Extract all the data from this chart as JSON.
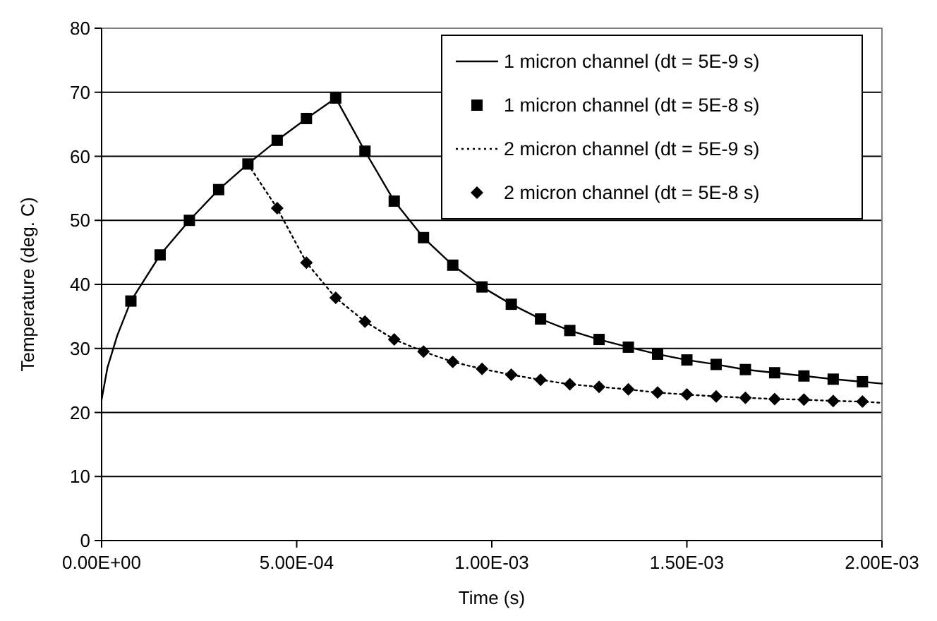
{
  "chart_data": {
    "type": "line",
    "xlabel": "Time (s)",
    "ylabel": "Temperature (deg. C)",
    "xlim": [
      0,
      0.002
    ],
    "ylim": [
      0,
      80
    ],
    "xticks": [
      {
        "value": 0,
        "label": "0.00E+00"
      },
      {
        "value": 0.0005,
        "label": "5.00E-04"
      },
      {
        "value": 0.001,
        "label": "1.00E-03"
      },
      {
        "value": 0.0015,
        "label": "1.50E-03"
      },
      {
        "value": 0.002,
        "label": "2.00E-03"
      }
    ],
    "yticks": [
      0,
      10,
      20,
      30,
      40,
      50,
      60,
      70,
      80
    ],
    "grid": "y",
    "legend": "top right",
    "series": [
      {
        "name": "1 micron channel (dt = 5E-9 s)",
        "type": "line",
        "color": "#000000",
        "marker": "none",
        "line_style": "solid",
        "x": [
          0,
          1.5e-05,
          4e-05,
          7.5e-05,
          0.00015,
          0.000225,
          0.0003,
          0.000375,
          0.00045,
          0.000525,
          0.0006,
          0.000675,
          0.00075,
          0.000825,
          0.0009,
          0.000975,
          0.00105,
          0.001125,
          0.0012,
          0.001275,
          0.00135,
          0.001425,
          0.0015,
          0.001575,
          0.00165,
          0.001725,
          0.0018,
          0.001875,
          0.00195,
          0.002
        ],
        "values": [
          22,
          27,
          32,
          37.4,
          44.6,
          50,
          54.8,
          58.8,
          62.5,
          65.9,
          69.1,
          60.8,
          53,
          47.3,
          43,
          39.6,
          36.9,
          34.6,
          32.8,
          31.4,
          30.2,
          29.1,
          28.2,
          27.5,
          26.7,
          26.2,
          25.7,
          25.2,
          24.8,
          24.5
        ]
      },
      {
        "name": "1 micron channel (dt = 5E-8 s)",
        "type": "scatter",
        "color": "#000000",
        "marker": "square",
        "x": [
          7.5e-05,
          0.00015,
          0.000225,
          0.0003,
          0.000375,
          0.00045,
          0.000525,
          0.0006,
          0.000675,
          0.00075,
          0.000825,
          0.0009,
          0.000975,
          0.00105,
          0.001125,
          0.0012,
          0.001275,
          0.00135,
          0.001425,
          0.0015,
          0.001575,
          0.00165,
          0.001725,
          0.0018,
          0.001875,
          0.00195
        ],
        "values": [
          37.4,
          44.6,
          50,
          54.8,
          58.8,
          62.5,
          65.9,
          69.1,
          60.8,
          53,
          47.3,
          43,
          39.6,
          36.9,
          34.6,
          32.8,
          31.4,
          30.2,
          29.1,
          28.2,
          27.5,
          26.7,
          26.2,
          25.7,
          25.2,
          24.8
        ]
      },
      {
        "name": "2 micron channel (dt = 5E-9 s)",
        "type": "line",
        "color": "#000000",
        "marker": "none",
        "line_style": "dotted",
        "x": [
          0.000375,
          0.00045,
          0.000525,
          0.0006,
          0.000675,
          0.00075,
          0.000825,
          0.0009,
          0.000975,
          0.00105,
          0.001125,
          0.0012,
          0.001275,
          0.00135,
          0.001425,
          0.0015,
          0.001575,
          0.00165,
          0.001725,
          0.0018,
          0.001875,
          0.00195,
          0.002
        ],
        "values": [
          58.8,
          51.9,
          43.4,
          37.9,
          34.2,
          31.4,
          29.5,
          27.9,
          26.8,
          25.9,
          25.1,
          24.4,
          24,
          23.6,
          23.1,
          22.8,
          22.5,
          22.3,
          22.1,
          22,
          21.8,
          21.7,
          21.5
        ]
      },
      {
        "name": "2 micron channel (dt = 5E-8 s)",
        "type": "scatter",
        "color": "#000000",
        "marker": "diamond",
        "x": [
          0.00045,
          0.000525,
          0.0006,
          0.000675,
          0.00075,
          0.000825,
          0.0009,
          0.000975,
          0.00105,
          0.001125,
          0.0012,
          0.001275,
          0.00135,
          0.001425,
          0.0015,
          0.001575,
          0.00165,
          0.001725,
          0.0018,
          0.001875,
          0.00195
        ],
        "values": [
          51.9,
          43.4,
          37.9,
          34.2,
          31.4,
          29.5,
          27.9,
          26.8,
          25.9,
          25.1,
          24.4,
          24,
          23.6,
          23.1,
          22.8,
          22.5,
          22.3,
          22.1,
          22,
          21.8,
          21.7
        ]
      }
    ]
  }
}
